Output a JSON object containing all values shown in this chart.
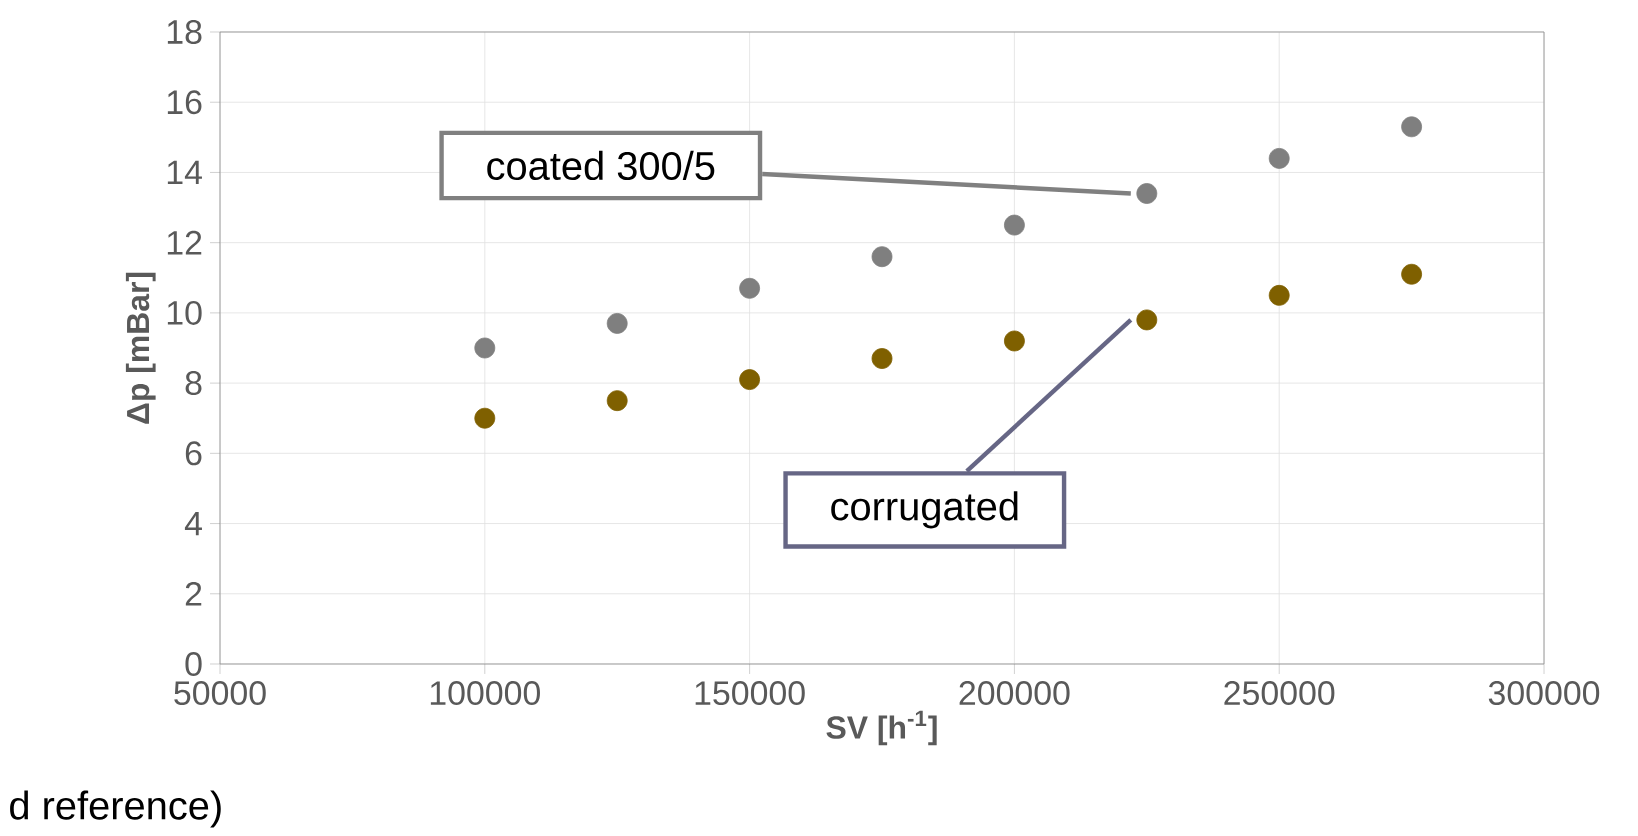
{
  "chart_data": {
    "type": "scatter",
    "xlabel": "SV [h$^{-1}$]",
    "ylabel": "Δp [mBar]",
    "xlim": [
      50000,
      300000
    ],
    "xticks": [
      50000,
      100000,
      150000,
      200000,
      250000,
      300000
    ],
    "ylim": [
      0,
      18
    ],
    "yticks": [
      0,
      2,
      4,
      6,
      8,
      10,
      12,
      14,
      16,
      18
    ],
    "x": [
      100000,
      125000,
      150000,
      175000,
      200000,
      225000,
      250000,
      275000
    ],
    "series": [
      {
        "color": "#7f7f7f",
        "values": [
          9.0,
          9.7,
          10.7,
          11.6,
          12.5,
          13.4,
          14.4,
          15.3
        ]
      },
      {
        "color": "#7f6000",
        "values": [
          7.0,
          7.5,
          8.1,
          8.7,
          9.2,
          9.8,
          10.5,
          11.1
        ]
      }
    ],
    "marker": "circle",
    "grid": true,
    "annotations": [
      {
        "text": "coated 300/5",
        "x": 225000,
        "y": 13.4
      },
      {
        "text": "corrugated",
        "x": 225000,
        "y": 9.8
      },
      "d reference)"
    ]
  }
}
